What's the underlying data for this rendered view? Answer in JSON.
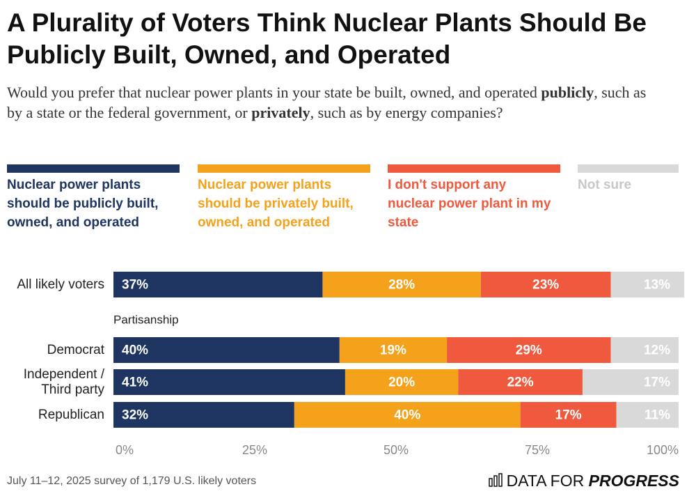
{
  "chart_data": {
    "type": "stacked_bar_horizontal",
    "title": "A Plurality of Voters Think Nuclear Plants Should Be Publicly Built, Owned, and Operated",
    "subtitle": [
      "Would you prefer that nuclear power plants in your state be built, owned, and operated ",
      "publicly",
      ", such as by a state or the federal government, or ",
      "privately",
      ", such as by energy companies?"
    ],
    "categories": [
      "All likely voters",
      "Democrat",
      "Independent / Third party",
      "Republican"
    ],
    "group_label": "Partisanship",
    "series": [
      {
        "name": "Nuclear power plants should be publicly built, owned, and operated",
        "color": "#1d3560",
        "values": [
          37,
          40,
          41,
          32
        ],
        "value_labels": [
          "37%",
          "40%",
          "41%",
          "32%"
        ]
      },
      {
        "name": "Nuclear power plants should be privately built, owned, and operated",
        "color": "#f4a11c",
        "values": [
          28,
          19,
          20,
          40
        ],
        "value_labels": [
          "28%",
          "19%",
          "20%",
          "40%"
        ]
      },
      {
        "name": "I don't support any nuclear power plant in my state",
        "color": "#ef5a3f",
        "values": [
          23,
          29,
          22,
          17
        ],
        "value_labels": [
          "23%",
          "29%",
          "22%",
          "17%"
        ]
      },
      {
        "name": "Not sure",
        "color": "#d9d9d9",
        "values": [
          13,
          12,
          17,
          11
        ],
        "value_labels": [
          "13%",
          "12%",
          "17%",
          "11%"
        ]
      }
    ],
    "xlim": [
      0,
      100
    ],
    "xticks": [
      {
        "value": 0,
        "label": "0%"
      },
      {
        "value": 25,
        "label": "25%"
      },
      {
        "value": 50,
        "label": "50%"
      },
      {
        "value": 75,
        "label": "75%"
      },
      {
        "value": 100,
        "label": "100%"
      }
    ],
    "source": "July 11–12, 2025 survey of 1,179 U.S. likely voters",
    "brand": [
      "DATA FOR",
      "PROGRESS"
    ]
  }
}
